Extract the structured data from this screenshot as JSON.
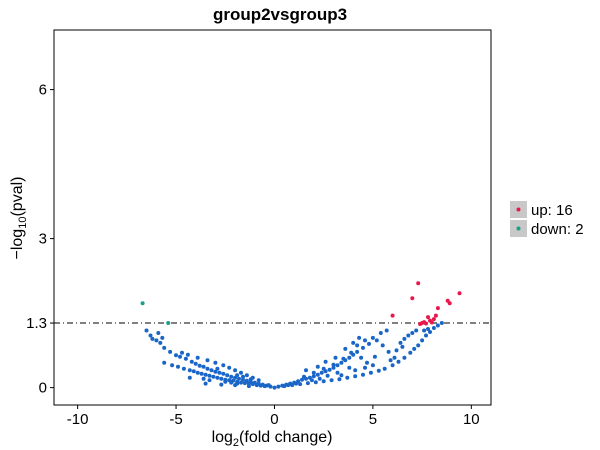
{
  "chart_data": {
    "type": "scatter",
    "title": "group2vsgroup3",
    "xlabel_base": "log",
    "xlabel_sub": "2",
    "xlabel_rest": "(fold change)",
    "ylabel_pre": "−log",
    "ylabel_sub": "10",
    "ylabel_rest": "(pval)",
    "xlim": [
      -11.2,
      11
    ],
    "ylim": [
      -0.35,
      7.2
    ],
    "xticks": [
      -10,
      -5,
      0,
      5,
      10
    ],
    "yticks": [
      0,
      1.3,
      3,
      6
    ],
    "ytick_labels": [
      "0",
      "1.3",
      "3",
      "6"
    ],
    "xtick_labels": [
      "-10",
      "-5",
      "0",
      "5",
      "10"
    ],
    "threshold": 1.3,
    "grid": false,
    "legend": {
      "placement": "right",
      "entries": [
        {
          "label": "up: 16",
          "color": "#e8184b"
        },
        {
          "label": "down: 2",
          "color": "#1b9e8a"
        }
      ]
    },
    "colors": {
      "up": "#e8184b",
      "down": "#1b9e8a",
      "ns": "#1a66c8"
    },
    "series": [
      {
        "key": "up",
        "points": [
          [
            7.3,
            2.1
          ],
          [
            9.4,
            1.9
          ],
          [
            7.0,
            1.8
          ],
          [
            8.8,
            1.75
          ],
          [
            8.9,
            1.7
          ],
          [
            8.3,
            1.6
          ],
          [
            6.0,
            1.45
          ],
          [
            8.2,
            1.45
          ],
          [
            7.8,
            1.42
          ],
          [
            8.1,
            1.38
          ],
          [
            7.9,
            1.35
          ],
          [
            7.6,
            1.32
          ],
          [
            7.5,
            1.3
          ],
          [
            7.4,
            1.28
          ],
          [
            7.7,
            1.29
          ],
          [
            8.0,
            1.31
          ]
        ]
      },
      {
        "key": "down",
        "points": [
          [
            -6.7,
            1.7
          ],
          [
            -5.4,
            1.3
          ]
        ]
      },
      {
        "key": "ns",
        "points": [
          [
            -6.5,
            1.15
          ],
          [
            -6.3,
            1.05
          ],
          [
            -6.0,
            0.95
          ],
          [
            -5.8,
            0.9
          ],
          [
            -5.6,
            0.8
          ],
          [
            -5.3,
            0.72
          ],
          [
            -5.0,
            0.65
          ],
          [
            -4.8,
            0.62
          ],
          [
            -4.5,
            0.58
          ],
          [
            -4.2,
            0.52
          ],
          [
            -4.0,
            0.48
          ],
          [
            -3.8,
            0.44
          ],
          [
            -3.6,
            0.42
          ],
          [
            -3.4,
            0.38
          ],
          [
            -3.2,
            0.35
          ],
          [
            -3.0,
            0.32
          ],
          [
            -2.8,
            0.3
          ],
          [
            -2.6,
            0.28
          ],
          [
            -2.4,
            0.25
          ],
          [
            -2.2,
            0.22
          ],
          [
            -2.0,
            0.2
          ],
          [
            -1.8,
            0.18
          ],
          [
            -1.6,
            0.16
          ],
          [
            -1.4,
            0.14
          ],
          [
            -1.2,
            0.12
          ],
          [
            -1.0,
            0.1
          ],
          [
            -0.8,
            0.08
          ],
          [
            -0.6,
            0.06
          ],
          [
            -0.4,
            0.04
          ],
          [
            -0.2,
            0.02
          ],
          [
            0.0,
            0.0
          ],
          [
            -5.6,
            0.5
          ],
          [
            -5.2,
            0.45
          ],
          [
            -4.9,
            0.42
          ],
          [
            -4.6,
            0.38
          ],
          [
            -4.3,
            0.35
          ],
          [
            -4.1,
            0.33
          ],
          [
            -3.9,
            0.3
          ],
          [
            -3.7,
            0.28
          ],
          [
            -3.5,
            0.26
          ],
          [
            -3.3,
            0.24
          ],
          [
            -3.1,
            0.22
          ],
          [
            -2.9,
            0.2
          ],
          [
            -2.7,
            0.18
          ],
          [
            -2.5,
            0.16
          ],
          [
            -2.3,
            0.15
          ],
          [
            -2.1,
            0.14
          ],
          [
            -1.9,
            0.12
          ],
          [
            -1.7,
            0.1
          ],
          [
            -1.5,
            0.09
          ],
          [
            -1.3,
            0.08
          ],
          [
            -1.1,
            0.07
          ],
          [
            -0.9,
            0.05
          ],
          [
            -0.7,
            0.04
          ],
          [
            -0.5,
            0.03
          ],
          [
            -4.7,
            0.7
          ],
          [
            -3.4,
            0.55
          ],
          [
            -3.0,
            0.5
          ],
          [
            -2.6,
            0.45
          ],
          [
            -2.3,
            0.4
          ],
          [
            -2.0,
            0.35
          ],
          [
            -1.7,
            0.3
          ],
          [
            -1.4,
            0.25
          ],
          [
            -1.1,
            0.2
          ],
          [
            -0.8,
            0.15
          ],
          [
            -2.5,
            0.12
          ],
          [
            -2.2,
            0.1
          ],
          [
            -1.9,
            0.08
          ],
          [
            -3.3,
            0.15
          ],
          [
            -3.6,
            0.18
          ],
          [
            -5.7,
            1.0
          ],
          [
            -5.9,
            1.1
          ],
          [
            -6.2,
            0.98
          ],
          [
            -4.4,
            0.66
          ],
          [
            -3.9,
            0.6
          ],
          [
            -2.9,
            0.38
          ],
          [
            -1.6,
            0.22
          ],
          [
            -0.3,
            0.05
          ],
          [
            -3.5,
            0.08
          ],
          [
            -2.7,
            0.06
          ],
          [
            -2.0,
            0.05
          ],
          [
            -1.3,
            0.03
          ],
          [
            -4.3,
            0.2
          ],
          [
            -1.9,
            0.25
          ],
          [
            -1.2,
            0.17
          ],
          [
            0.2,
            0.02
          ],
          [
            0.4,
            0.04
          ],
          [
            0.6,
            0.06
          ],
          [
            0.8,
            0.08
          ],
          [
            1.0,
            0.1
          ],
          [
            1.2,
            0.13
          ],
          [
            1.4,
            0.16
          ],
          [
            1.6,
            0.18
          ],
          [
            1.8,
            0.2
          ],
          [
            2.0,
            0.23
          ],
          [
            2.2,
            0.26
          ],
          [
            2.4,
            0.3
          ],
          [
            2.6,
            0.33
          ],
          [
            2.8,
            0.36
          ],
          [
            3.0,
            0.4
          ],
          [
            3.2,
            0.45
          ],
          [
            3.4,
            0.5
          ],
          [
            3.6,
            0.55
          ],
          [
            3.8,
            0.6
          ],
          [
            4.0,
            0.66
          ],
          [
            4.2,
            0.72
          ],
          [
            4.5,
            0.8
          ],
          [
            4.8,
            0.88
          ],
          [
            5.2,
            0.95
          ],
          [
            0.5,
            0.03
          ],
          [
            0.9,
            0.05
          ],
          [
            1.3,
            0.07
          ],
          [
            1.7,
            0.09
          ],
          [
            2.1,
            0.11
          ],
          [
            2.5,
            0.13
          ],
          [
            2.9,
            0.15
          ],
          [
            3.3,
            0.17
          ],
          [
            3.7,
            0.2
          ],
          [
            4.1,
            0.23
          ],
          [
            4.5,
            0.26
          ],
          [
            4.9,
            0.3
          ],
          [
            5.3,
            0.34
          ],
          [
            5.6,
            0.38
          ],
          [
            6.0,
            0.45
          ],
          [
            6.3,
            0.52
          ],
          [
            6.6,
            0.6
          ],
          [
            6.9,
            0.7
          ],
          [
            7.1,
            0.78
          ],
          [
            7.3,
            0.85
          ],
          [
            7.5,
            0.95
          ],
          [
            7.7,
            1.05
          ],
          [
            7.9,
            1.12
          ],
          [
            8.1,
            1.2
          ],
          [
            8.3,
            1.25
          ],
          [
            8.5,
            1.3
          ],
          [
            6.8,
            1.05
          ],
          [
            7.0,
            1.1
          ],
          [
            7.2,
            1.15
          ],
          [
            6.6,
            0.98
          ],
          [
            6.4,
            0.9
          ],
          [
            1.5,
            0.22
          ],
          [
            2.0,
            0.3
          ],
          [
            2.5,
            0.38
          ],
          [
            3.0,
            0.46
          ],
          [
            3.5,
            0.58
          ],
          [
            3.9,
            0.7
          ],
          [
            4.2,
            0.85
          ],
          [
            4.6,
            0.95
          ],
          [
            5.0,
            1.0
          ],
          [
            5.4,
            1.1
          ],
          [
            5.7,
            1.15
          ],
          [
            4.4,
            0.6
          ],
          [
            3.8,
            0.4
          ],
          [
            3.2,
            0.3
          ],
          [
            2.7,
            0.24
          ],
          [
            2.3,
            0.18
          ],
          [
            1.9,
            0.15
          ],
          [
            1.1,
            0.08
          ],
          [
            0.7,
            0.05
          ],
          [
            4.7,
            0.5
          ],
          [
            5.1,
            0.62
          ],
          [
            5.8,
            0.72
          ],
          [
            6.2,
            0.75
          ],
          [
            6.5,
            0.82
          ],
          [
            4.0,
            0.9
          ],
          [
            4.3,
            1.0
          ],
          [
            5.5,
            0.85
          ],
          [
            3.6,
            0.78
          ],
          [
            3.1,
            0.6
          ],
          [
            2.6,
            0.52
          ],
          [
            2.2,
            0.42
          ],
          [
            1.6,
            0.35
          ],
          [
            7.6,
            1.15
          ],
          [
            7.8,
            1.18
          ],
          [
            6.1,
            0.6
          ],
          [
            5.9,
            0.55
          ],
          [
            5.0,
            0.45
          ],
          [
            4.6,
            0.4
          ],
          [
            4.1,
            0.35
          ],
          [
            3.4,
            0.25
          ]
        ]
      }
    ]
  }
}
